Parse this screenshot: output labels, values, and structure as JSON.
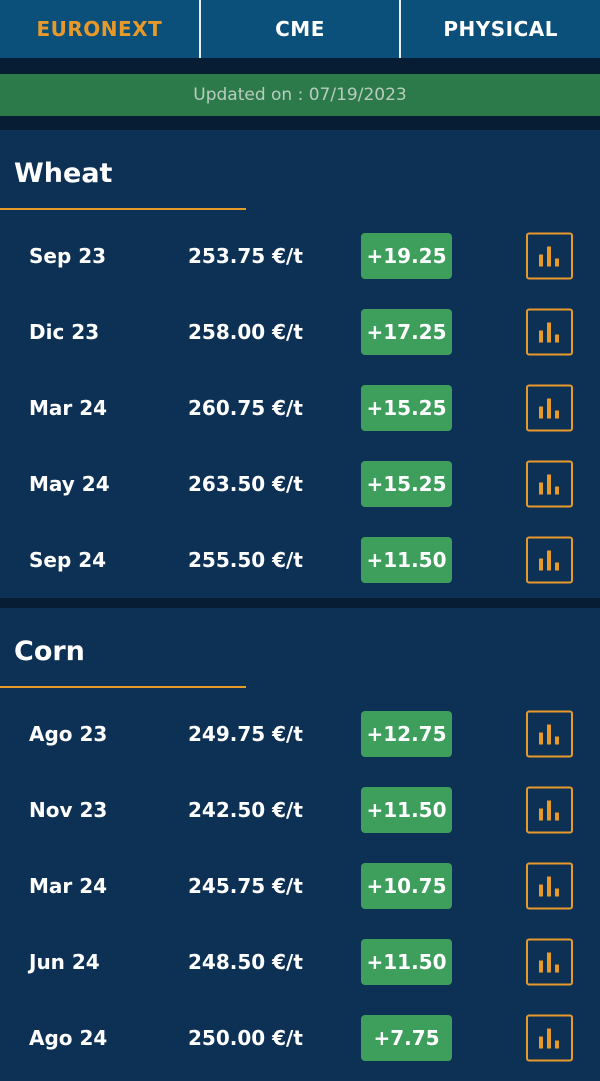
{
  "tabs": [
    {
      "label": "EURONEXT",
      "active": true
    },
    {
      "label": "CME",
      "active": false
    },
    {
      "label": "PHYSICAL",
      "active": false
    }
  ],
  "updated": "Updated on : 07/19/2023",
  "colors": {
    "accent": "#e79a2a",
    "positive": "#3e9e5c",
    "background": "#0d3055"
  },
  "sections": [
    {
      "title": "Wheat",
      "rows": [
        {
          "month": "Sep 23",
          "price": "253.75 €/t",
          "change": "+19.25"
        },
        {
          "month": "Dic 23",
          "price": "258.00 €/t",
          "change": "+17.25"
        },
        {
          "month": "Mar 24",
          "price": "260.75 €/t",
          "change": "+15.25"
        },
        {
          "month": "May 24",
          "price": "263.50 €/t",
          "change": "+15.25"
        },
        {
          "month": "Sep 24",
          "price": "255.50 €/t",
          "change": "+11.50"
        }
      ]
    },
    {
      "title": "Corn",
      "rows": [
        {
          "month": "Ago 23",
          "price": "249.75 €/t",
          "change": "+12.75"
        },
        {
          "month": "Nov 23",
          "price": "242.50 €/t",
          "change": "+11.50"
        },
        {
          "month": "Mar 24",
          "price": "245.75 €/t",
          "change": "+10.75"
        },
        {
          "month": "Jun 24",
          "price": "248.50 €/t",
          "change": "+11.50"
        },
        {
          "month": "Ago 24",
          "price": "250.00 €/t",
          "change": "+7.75"
        }
      ]
    }
  ],
  "icons": {
    "chart": "bar-chart-icon"
  }
}
